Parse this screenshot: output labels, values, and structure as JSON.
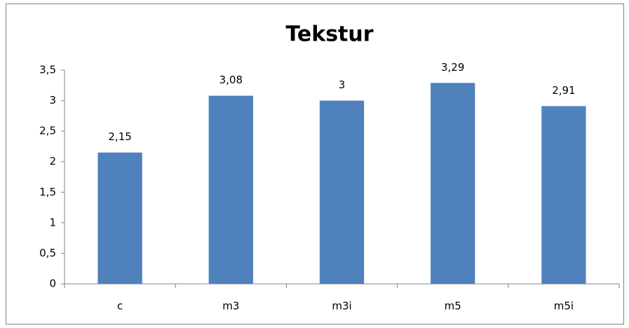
{
  "chart_data": {
    "type": "bar",
    "title": "Tekstur",
    "categories": [
      "c",
      "m3",
      "m3i",
      "m5",
      "m5i"
    ],
    "values": [
      2.15,
      3.08,
      3,
      3.29,
      2.91
    ],
    "value_labels": [
      "2,15",
      "3,08",
      "3",
      "3,29",
      "2,91"
    ],
    "color": "#4f81bd",
    "ylim": [
      0,
      3.5
    ],
    "yticks": [
      0,
      {
        "value": 0.5,
        "label": "0,5"
      },
      1,
      {
        "value": 1.5,
        "label": "1,5"
      },
      2,
      {
        "value": 2.5,
        "label": "2,5"
      },
      3,
      {
        "value": 3.5,
        "label": "3,5"
      }
    ],
    "grid": false
  }
}
